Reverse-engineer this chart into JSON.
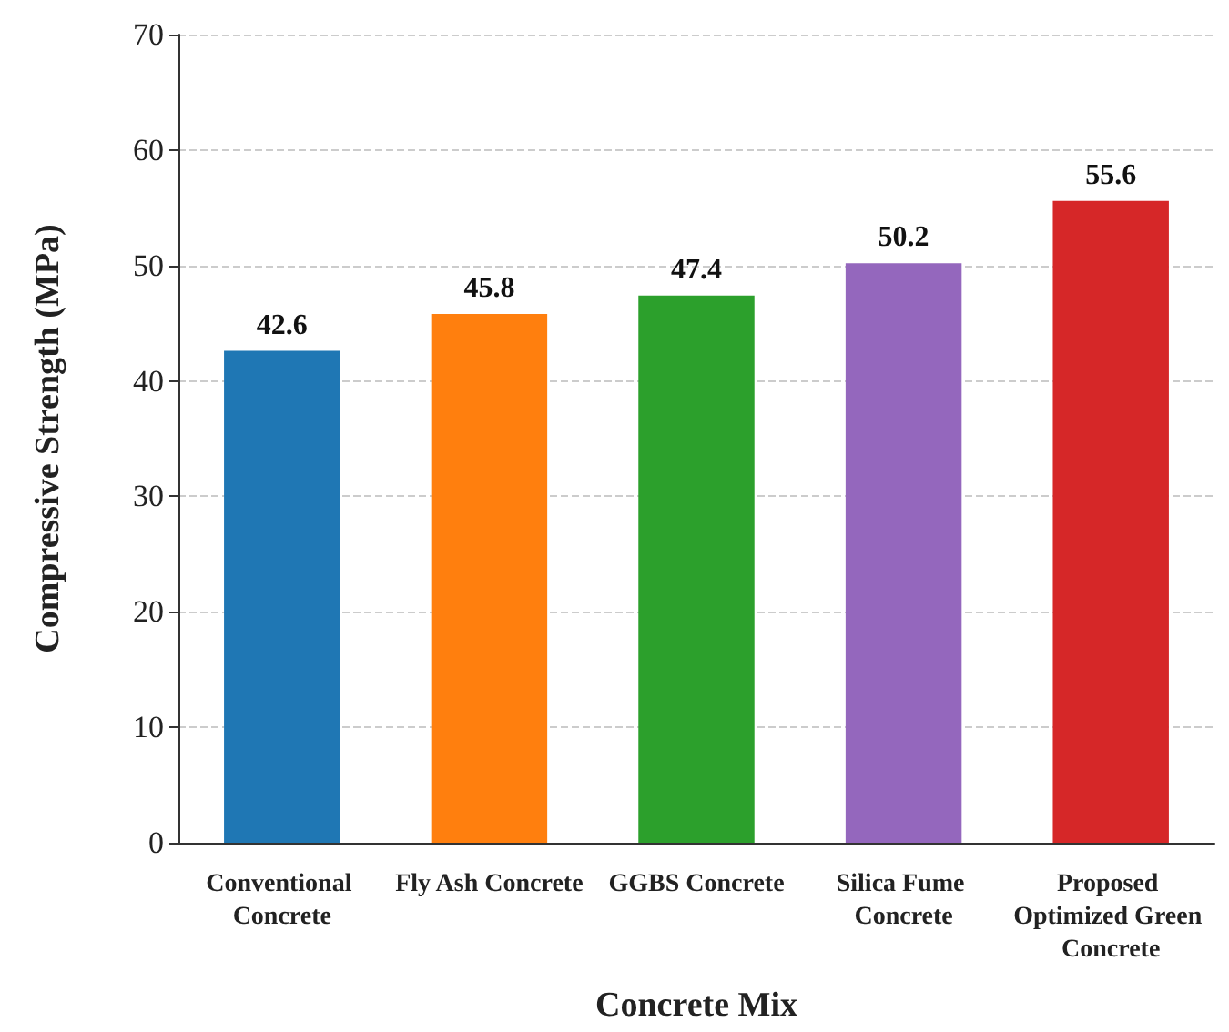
{
  "chart_data": {
    "type": "bar",
    "xlabel": "Concrete Mix",
    "ylabel": "Compressive Strength (MPa)",
    "categories": [
      "Conventional Concrete",
      "Fly Ash Concrete",
      "GGBS Concrete",
      "Silica Fume Concrete",
      "Proposed Optimized Green Concrete"
    ],
    "values": [
      42.6,
      45.8,
      47.4,
      50.2,
      55.6
    ],
    "colors": [
      "#1f77b4",
      "#ff7f0e",
      "#2ca02c",
      "#9467bd",
      "#d62728"
    ],
    "ylim": [
      0,
      70
    ],
    "yticks": [
      0,
      10,
      20,
      30,
      40,
      50,
      60,
      70
    ],
    "grid": "y",
    "data_labels": true
  }
}
